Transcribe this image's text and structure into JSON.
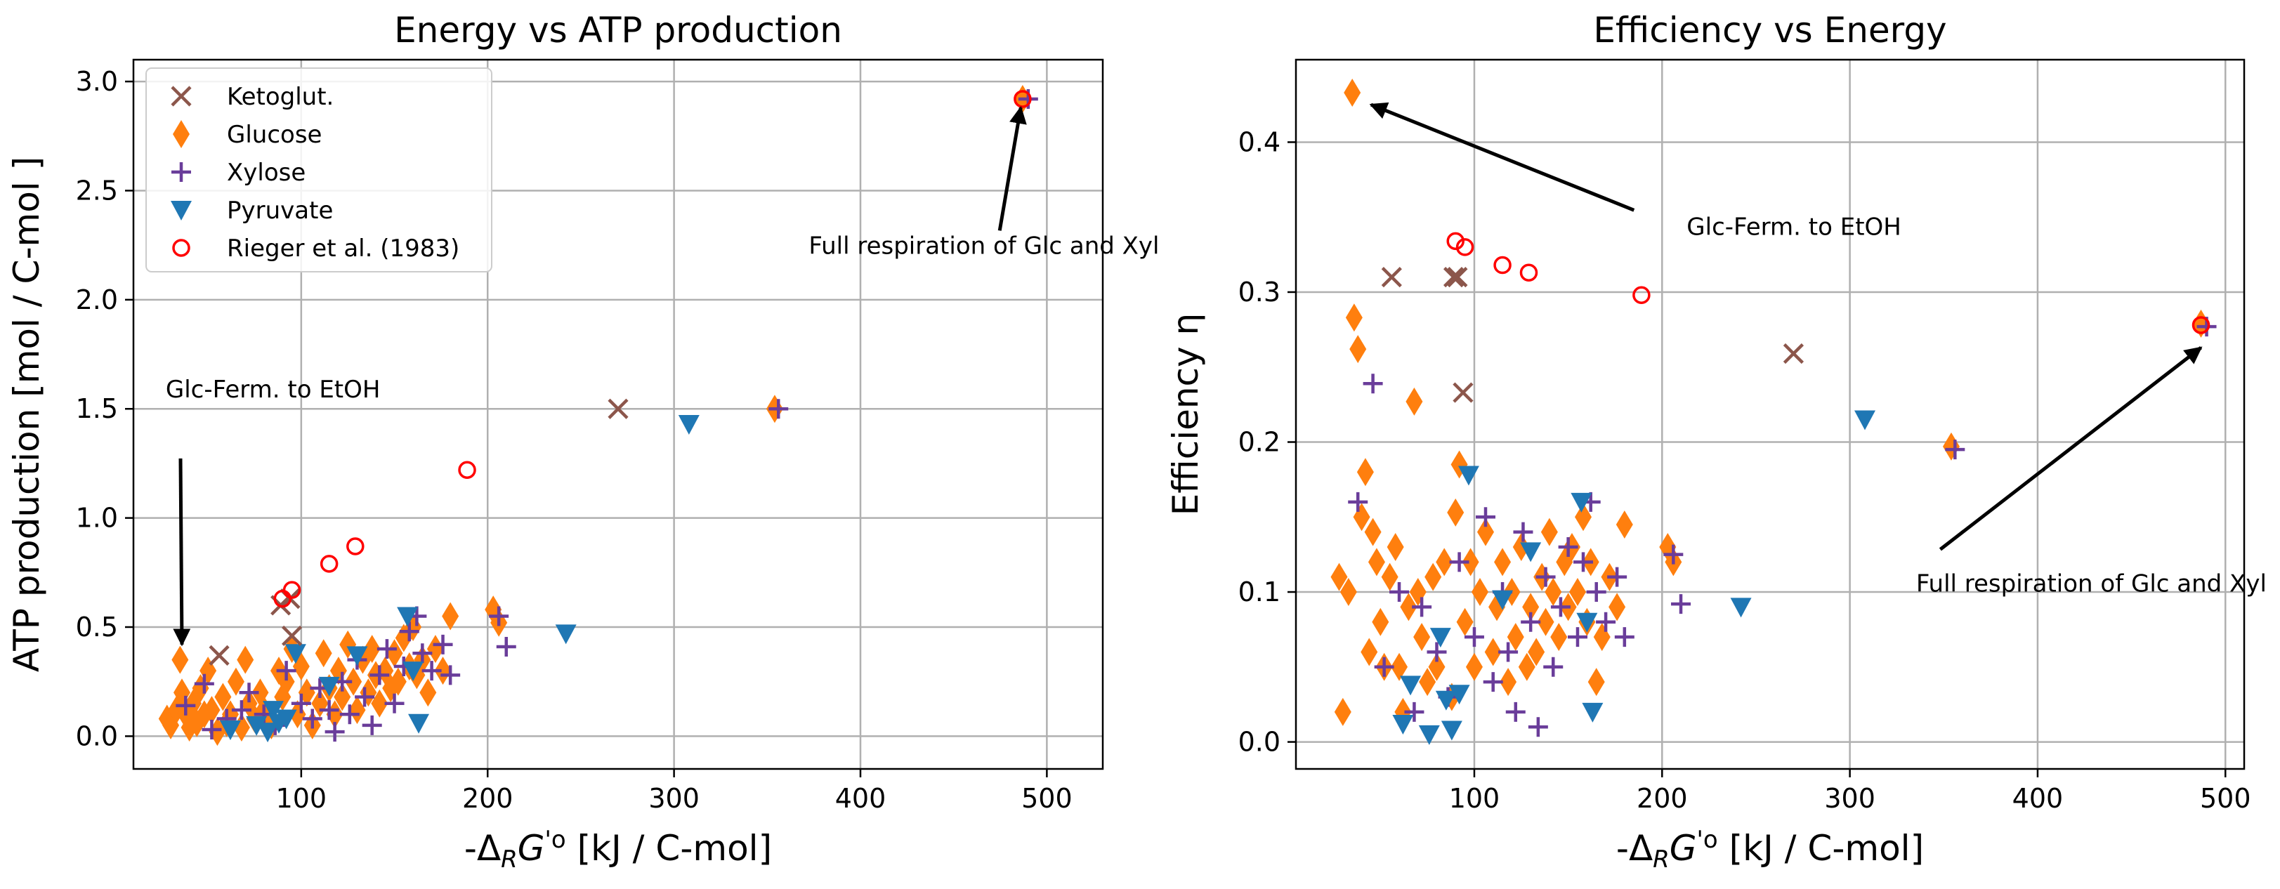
{
  "colors": {
    "ketoglut": "#8c564b",
    "glucose": "#ff7f0e",
    "xylose": "#6a3d9a",
    "pyruvate": "#1f77b4",
    "rieger": "#ff0000",
    "grid": "#b0b0b0"
  },
  "chart_data": [
    {
      "type": "scatter",
      "title": "Energy vs ATP production",
      "xlabel": "-ΔRG'o [kJ / C-mol]",
      "ylabel": "ATP production [mol / C-mol ]",
      "xlim": [
        10,
        530
      ],
      "ylim": [
        -0.15,
        3.1
      ],
      "xticks": [
        100,
        200,
        300,
        400,
        500
      ],
      "yticks": [
        0.0,
        0.5,
        1.0,
        1.5,
        2.0,
        2.5,
        3.0
      ],
      "ytick_labels": [
        "0.0",
        "0.5",
        "1.0",
        "1.5",
        "2.0",
        "2.5",
        "3.0"
      ],
      "grid": true,
      "legend_position": "upper-left",
      "legend": [
        "Ketoglut.",
        "Glucose",
        "Xylose",
        "Pyruvate",
        "Rieger et al. (1983)"
      ],
      "annotations": [
        {
          "text": "Full respiration of Glc and Xyl",
          "xy": [
            486,
            2.88
          ],
          "xytext": [
            455,
            2.23
          ]
        },
        {
          "text": "Glc-Ferm. to EtOH",
          "xy": [
            36,
            0.42
          ],
          "xytext": [
            34,
            1.52
          ]
        }
      ],
      "series": [
        {
          "name": "Ketoglut.",
          "marker": "x",
          "x": [
            56,
            89,
            94,
            95,
            270
          ],
          "y": [
            0.37,
            0.6,
            0.63,
            0.46,
            1.5
          ]
        },
        {
          "name": "Glucose",
          "marker": "diamond",
          "x": [
            28,
            30,
            33,
            35,
            36,
            38,
            40,
            42,
            44,
            46,
            48,
            50,
            52,
            55,
            58,
            60,
            62,
            65,
            68,
            70,
            72,
            75,
            78,
            80,
            84,
            88,
            90,
            92,
            95,
            98,
            100,
            103,
            106,
            110,
            112,
            115,
            118,
            120,
            122,
            125,
            128,
            130,
            133,
            136,
            138,
            140,
            142,
            145,
            148,
            150,
            152,
            155,
            158,
            160,
            162,
            165,
            168,
            172,
            176,
            180,
            203,
            206,
            354,
            487
          ],
          "y": [
            0.08,
            0.05,
            0.12,
            0.35,
            0.2,
            0.1,
            0.04,
            0.15,
            0.06,
            0.22,
            0.1,
            0.3,
            0.12,
            0.02,
            0.18,
            0.06,
            0.1,
            0.25,
            0.04,
            0.35,
            0.15,
            0.08,
            0.2,
            0.12,
            0.05,
            0.3,
            0.18,
            0.25,
            0.4,
            0.1,
            0.32,
            0.2,
            0.05,
            0.15,
            0.38,
            0.22,
            0.1,
            0.3,
            0.18,
            0.42,
            0.25,
            0.12,
            0.35,
            0.2,
            0.4,
            0.28,
            0.15,
            0.3,
            0.22,
            0.38,
            0.25,
            0.45,
            0.32,
            0.5,
            0.28,
            0.35,
            0.2,
            0.4,
            0.3,
            0.55,
            0.58,
            0.52,
            1.5,
            2.92
          ]
        },
        {
          "name": "Xylose",
          "marker": "plus",
          "x": [
            38,
            48,
            52,
            60,
            68,
            72,
            80,
            86,
            92,
            100,
            106,
            110,
            115,
            118,
            122,
            126,
            130,
            134,
            138,
            142,
            146,
            150,
            155,
            158,
            162,
            165,
            170,
            176,
            180,
            206,
            210,
            356,
            490
          ],
          "y": [
            0.14,
            0.24,
            0.03,
            0.08,
            0.12,
            0.2,
            0.1,
            0.05,
            0.3,
            0.15,
            0.08,
            0.22,
            0.12,
            0.02,
            0.25,
            0.1,
            0.35,
            0.18,
            0.05,
            0.28,
            0.4,
            0.15,
            0.32,
            0.48,
            0.55,
            0.38,
            0.3,
            0.42,
            0.28,
            0.55,
            0.41,
            1.5,
            2.92
          ]
        },
        {
          "name": "Pyruvate",
          "marker": "triangle-down",
          "x": [
            62,
            76,
            82,
            85,
            88,
            92,
            97,
            115,
            130,
            157,
            160,
            163,
            242,
            308
          ],
          "y": [
            0.03,
            0.05,
            0.02,
            0.12,
            0.06,
            0.08,
            0.38,
            0.23,
            0.37,
            0.55,
            0.3,
            0.06,
            0.47,
            1.43
          ]
        },
        {
          "name": "Rieger et al. (1983)",
          "marker": "circle",
          "x": [
            90,
            95,
            115,
            129,
            189,
            487
          ],
          "y": [
            0.63,
            0.67,
            0.79,
            0.87,
            1.22,
            2.92
          ]
        }
      ]
    },
    {
      "type": "scatter",
      "title": "Efficiency vs Energy",
      "xlabel": "-ΔRG'o [kJ / C-mol]",
      "ylabel": "Efficiency η",
      "xlim": [
        5,
        510
      ],
      "ylim": [
        -0.018,
        0.455
      ],
      "xticks": [
        100,
        200,
        300,
        400,
        500
      ],
      "yticks": [
        0.0,
        0.1,
        0.2,
        0.3,
        0.4
      ],
      "ytick_labels": [
        "0.0",
        "0.1",
        "0.2",
        "0.3",
        "0.4"
      ],
      "grid": true,
      "annotations": [
        {
          "text": "Glc-Ferm. to EtOH",
          "xy": [
            45,
            0.425
          ],
          "xytext": [
            200,
            0.357
          ]
        },
        {
          "text": "Full respiration of Glc and Xyl",
          "xy": [
            487,
            0.263
          ],
          "xytext": [
            365,
            0.105
          ]
        }
      ],
      "series": [
        {
          "name": "Ketoglut.",
          "marker": "x",
          "x": [
            56,
            89,
            91,
            94,
            270
          ],
          "y": [
            0.31,
            0.31,
            0.31,
            0.233,
            0.259
          ]
        },
        {
          "name": "Glucose",
          "marker": "diamond",
          "x": [
            28,
            30,
            33,
            35,
            36,
            38,
            40,
            42,
            44,
            46,
            48,
            50,
            52,
            55,
            58,
            60,
            62,
            65,
            68,
            70,
            72,
            75,
            78,
            80,
            84,
            88,
            90,
            92,
            95,
            98,
            100,
            103,
            106,
            110,
            112,
            115,
            118,
            120,
            122,
            125,
            128,
            130,
            133,
            136,
            138,
            140,
            142,
            145,
            148,
            150,
            152,
            155,
            158,
            160,
            162,
            165,
            168,
            172,
            176,
            180,
            203,
            206,
            354,
            487
          ],
          "y": [
            0.11,
            0.02,
            0.1,
            0.433,
            0.283,
            0.262,
            0.15,
            0.18,
            0.06,
            0.14,
            0.12,
            0.08,
            0.05,
            0.11,
            0.13,
            0.05,
            0.02,
            0.09,
            0.227,
            0.1,
            0.07,
            0.04,
            0.11,
            0.05,
            0.12,
            0.03,
            0.153,
            0.185,
            0.08,
            0.12,
            0.05,
            0.1,
            0.14,
            0.06,
            0.09,
            0.12,
            0.04,
            0.1,
            0.07,
            0.13,
            0.05,
            0.09,
            0.06,
            0.11,
            0.08,
            0.14,
            0.1,
            0.07,
            0.12,
            0.09,
            0.13,
            0.1,
            0.15,
            0.08,
            0.12,
            0.04,
            0.07,
            0.11,
            0.09,
            0.145,
            0.13,
            0.12,
            0.197,
            0.279
          ]
        },
        {
          "name": "Xylose",
          "marker": "plus",
          "x": [
            38,
            46,
            52,
            60,
            68,
            72,
            80,
            86,
            92,
            100,
            106,
            110,
            115,
            118,
            122,
            126,
            130,
            134,
            138,
            142,
            146,
            150,
            155,
            158,
            162,
            165,
            170,
            176,
            180,
            206,
            210,
            356,
            490
          ],
          "y": [
            0.16,
            0.239,
            0.05,
            0.1,
            0.02,
            0.09,
            0.06,
            0.03,
            0.12,
            0.07,
            0.15,
            0.04,
            0.1,
            0.06,
            0.02,
            0.14,
            0.08,
            0.01,
            0.11,
            0.05,
            0.09,
            0.13,
            0.07,
            0.12,
            0.16,
            0.1,
            0.08,
            0.11,
            0.07,
            0.125,
            0.092,
            0.195,
            0.277
          ]
        },
        {
          "name": "Pyruvate",
          "marker": "triangle-down",
          "x": [
            62,
            66,
            76,
            82,
            85,
            88,
            92,
            97,
            115,
            130,
            157,
            160,
            163,
            242,
            308
          ],
          "y": [
            0.012,
            0.038,
            0.005,
            0.07,
            0.028,
            0.008,
            0.032,
            0.178,
            0.095,
            0.127,
            0.16,
            0.08,
            0.02,
            0.09,
            0.215
          ]
        },
        {
          "name": "Rieger et al. (1983)",
          "marker": "circle",
          "x": [
            90,
            95,
            115,
            129,
            189,
            487
          ],
          "y": [
            0.334,
            0.33,
            0.318,
            0.313,
            0.298,
            0.278
          ]
        }
      ]
    }
  ]
}
